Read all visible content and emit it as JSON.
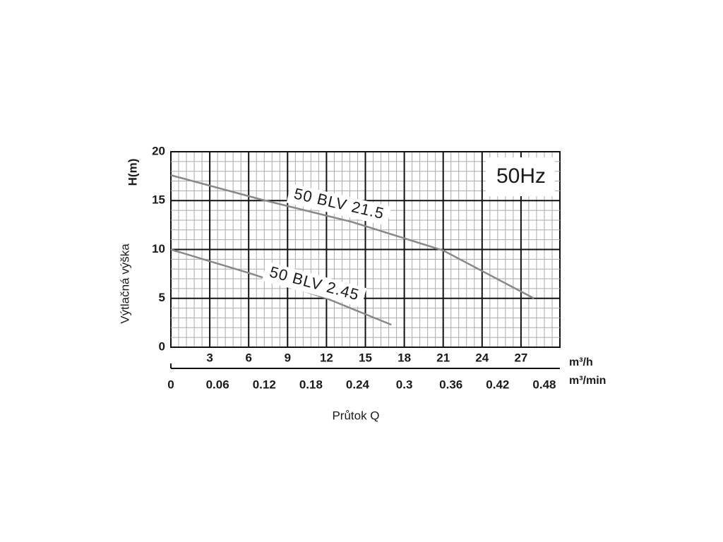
{
  "chart_data": {
    "type": "line",
    "y_label": "Výtlačná výška",
    "y_unit": "H(m)",
    "x_label": "Průtok Q",
    "x_unit": "m³/h",
    "x2_unit": "m³/min",
    "annotation": "50Hz",
    "xlim": [
      0,
      30
    ],
    "xticks": [
      3,
      6,
      9,
      12,
      15,
      18,
      21,
      24,
      27
    ],
    "x2lim": [
      0,
      0.5
    ],
    "x2ticks": [
      0,
      0.06,
      0.12,
      0.18,
      0.24,
      0.3,
      0.36,
      0.42,
      0.48
    ],
    "ylim": [
      0,
      20
    ],
    "yticks": [
      0,
      5,
      10,
      15,
      20
    ],
    "grid": true,
    "series": [
      {
        "name": "50 BLV 21.5",
        "color": "#888888",
        "x": [
          0,
          7,
          14,
          21,
          28
        ],
        "values": [
          17.6,
          15.1,
          12.8,
          9.9,
          5
        ]
      },
      {
        "name": "50 BLV 2.45",
        "color": "#888888",
        "x": [
          0,
          6,
          12,
          17
        ],
        "values": [
          10,
          7.6,
          5,
          2.3
        ]
      }
    ]
  }
}
